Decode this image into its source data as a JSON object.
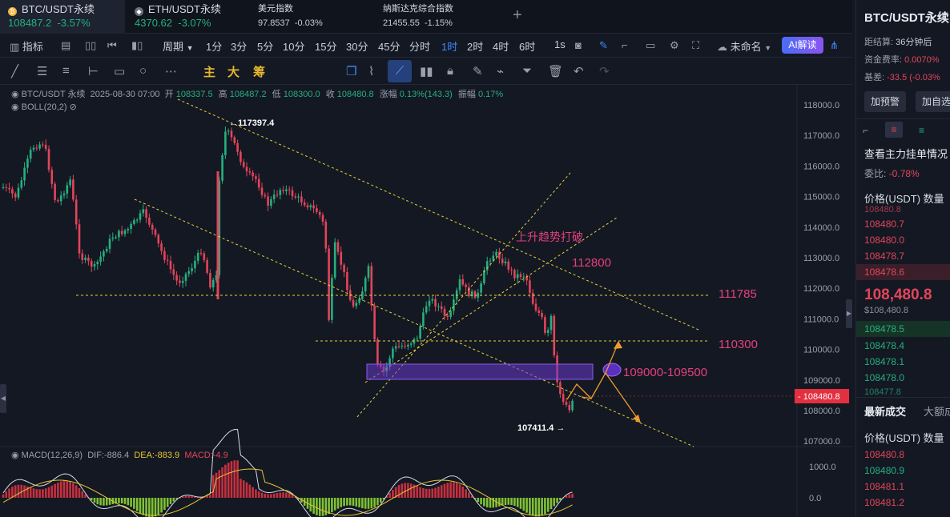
{
  "tabs": [
    {
      "name": "BTC/USDT永续",
      "price": "108487.2",
      "change": "-3.57%"
    },
    {
      "name": "ETH/USDT永续",
      "price": "4370.62",
      "change": "-3.07%"
    },
    {
      "name": "美元指数",
      "price": "97.8537",
      "change": "-0.03%"
    },
    {
      "name": "纳斯达克综合指数",
      "price": "21455.55",
      "change": "-1.15%"
    }
  ],
  "toolbar": {
    "indicators": "指标",
    "period": "周期",
    "intervals": [
      "1分",
      "3分",
      "5分",
      "10分",
      "15分",
      "30分",
      "45分",
      "分时",
      "1时",
      "2时",
      "4时",
      "6时",
      "1s"
    ],
    "active_interval": "1时",
    "unnamed": "未命名",
    "ai": "AI解读"
  },
  "drawtools": {
    "main": "主",
    "large": "大",
    "chips": "筹"
  },
  "ohlc": {
    "symbol": "BTC/USDT 永续",
    "time": "2025-08-30 07:00",
    "open_label": "开",
    "open": "108337.5",
    "high_label": "高",
    "high": "108487.2",
    "low_label": "低",
    "low": "108300.0",
    "close_label": "收",
    "close": "108480.8",
    "chg_label": "涨幅",
    "chg": "0.13%(143.3)",
    "amp_label": "振幅",
    "amp": "0.17%",
    "boll": "BOLL(20,2)"
  },
  "macd": {
    "label": "MACD(12,26,9)",
    "dif": "DIF:-886.4",
    "dea": "DEA:-883.9",
    "macd": "MACD:-4.9"
  },
  "chart_data": {
    "type": "candlestick",
    "y_ticks": [
      "118000.0",
      "117000.0",
      "116000.0",
      "115000.0",
      "114000.0",
      "113000.0",
      "112000.0",
      "111000.0",
      "110000.0",
      "109000.0",
      "108000.0",
      "107000.0"
    ],
    "macd_ticks": [
      "1000.0",
      "0.0"
    ],
    "current_price": "108480.8",
    "annotations": {
      "high": "←117397.4",
      "low": "107411.4 →",
      "breakout": "上升趋势打破",
      "r1": "112800",
      "r2": "111785",
      "r3": "110300",
      "zone": "109000-109500"
    }
  },
  "sidebar": {
    "title": "BTC/USDT永续",
    "settle_label": "距结算:",
    "settle": "36分钟后",
    "funding_label": "资金费率:",
    "funding": "0.0070%",
    "basis_label": "基差:",
    "basis": "-33.5 (-0.03%",
    "alert_btn": "加预警",
    "watch_btn": "加自选",
    "orders_title": "查看主力挂单情况",
    "ratio_label": "委比:",
    "ratio": "-0.78%",
    "price_hdr": "价格(USDT)",
    "qty_hdr": "数量",
    "asks": [
      "108480.8",
      "108480.7",
      "108480.0",
      "108478.7",
      "108478.6"
    ],
    "last_price": "108,480.8",
    "last_usd": "$108,480.8",
    "bids": [
      "108478.5",
      "108478.4",
      "108478.1",
      "108478.0",
      "108477.8"
    ],
    "trades_tab": "最新成交",
    "large_tab": "大额成",
    "trades": [
      "108480.8",
      "108480.9",
      "108481.1",
      "108481.2"
    ]
  }
}
